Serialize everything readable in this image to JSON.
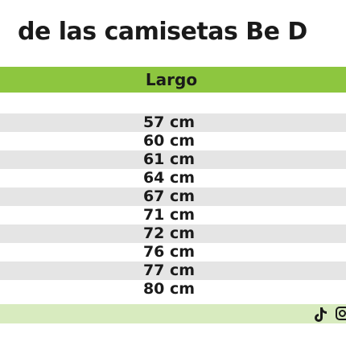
{
  "title": "de las camisetas Be D",
  "table": {
    "header": "Largo",
    "rows": [
      "57 cm",
      "60 cm",
      "61 cm",
      "64 cm",
      "67 cm",
      "71 cm",
      "72 cm",
      "76 cm",
      "77 cm",
      "80 cm"
    ]
  }
}
